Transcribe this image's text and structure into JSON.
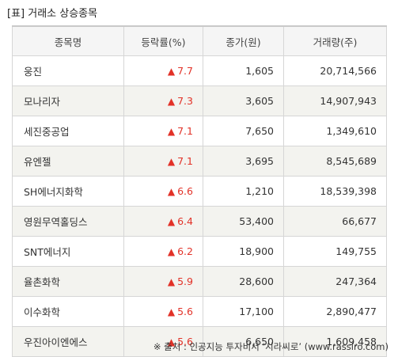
{
  "title": "[표] 거래소 상승종목",
  "columns": [
    "종목명",
    "등락률(%)",
    "종가(원)",
    "거래량(주)"
  ],
  "up_arrow": "▲",
  "rows": [
    {
      "name": "웅진",
      "rate": "7.7",
      "price": "1,605",
      "volume": "20,714,566"
    },
    {
      "name": "모나리자",
      "rate": "7.3",
      "price": "3,605",
      "volume": "14,907,943"
    },
    {
      "name": "세진중공업",
      "rate": "7.1",
      "price": "7,650",
      "volume": "1,349,610"
    },
    {
      "name": "유엔젤",
      "rate": "7.1",
      "price": "3,695",
      "volume": "8,545,689"
    },
    {
      "name": "SH에너지화학",
      "rate": "6.6",
      "price": "1,210",
      "volume": "18,539,398"
    },
    {
      "name": "영원무역홀딩스",
      "rate": "6.4",
      "price": "53,400",
      "volume": "66,677"
    },
    {
      "name": "SNT에너지",
      "rate": "6.2",
      "price": "18,900",
      "volume": "149,755"
    },
    {
      "name": "율촌화학",
      "rate": "5.9",
      "price": "28,600",
      "volume": "247,364"
    },
    {
      "name": "이수화학",
      "rate": "5.6",
      "price": "17,100",
      "volume": "2,890,477"
    },
    {
      "name": "우진아이엔에스",
      "rate": "5.6",
      "price": "6,650",
      "volume": "1,609,458"
    }
  ],
  "source": "※ 출처 : 인공지능 투자비서 ‘시라씨로’ (www.rassiro.com)",
  "colors": {
    "up": "#e23228",
    "header_bg": "#f5f5f5",
    "alt_row_bg": "#f3f3ef",
    "border": "#d6d6d6"
  }
}
